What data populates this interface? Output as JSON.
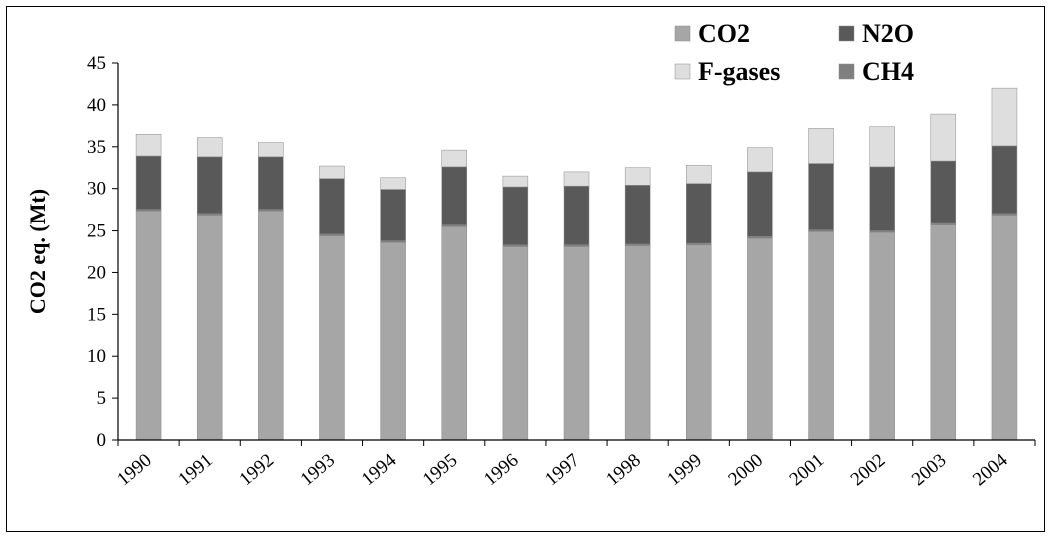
{
  "chart_data": {
    "type": "bar",
    "stacked": true,
    "title": "",
    "xlabel": "",
    "ylabel": "CO2 eq. (Mt)",
    "ylim": [
      0,
      45
    ],
    "ytick_step": 5,
    "grid": false,
    "legend_position": "top-right",
    "categories": [
      "1990",
      "1991",
      "1992",
      "1993",
      "1994",
      "1995",
      "1996",
      "1997",
      "1998",
      "1999",
      "2000",
      "2001",
      "2002",
      "2003",
      "2004"
    ],
    "series": [
      {
        "name": "CO2",
        "color": "#a6a6a6",
        "values": [
          27.3,
          26.8,
          27.3,
          24.4,
          23.6,
          25.5,
          23.1,
          23.1,
          23.2,
          23.3,
          24.1,
          24.9,
          24.8,
          25.7,
          26.8
        ]
      },
      {
        "name": "CH4",
        "color": "#7f7f7f",
        "values": [
          0.2,
          0.2,
          0.2,
          0.2,
          0.2,
          0.2,
          0.2,
          0.2,
          0.2,
          0.2,
          0.2,
          0.2,
          0.2,
          0.2,
          0.2
        ]
      },
      {
        "name": "N2O",
        "color": "#595959",
        "values": [
          6.4,
          6.8,
          6.3,
          6.6,
          6.1,
          6.9,
          6.9,
          7.0,
          7.0,
          7.1,
          7.7,
          7.9,
          7.6,
          7.4,
          8.1
        ]
      },
      {
        "name": "F-gases",
        "color": "#dedede",
        "values": [
          2.6,
          2.3,
          1.7,
          1.5,
          1.4,
          2.0,
          1.3,
          1.7,
          2.1,
          2.2,
          2.9,
          4.2,
          4.8,
          5.6,
          6.9
        ]
      }
    ],
    "legend_order": [
      "CO2",
      "N2O",
      "F-gases",
      "CH4"
    ]
  }
}
